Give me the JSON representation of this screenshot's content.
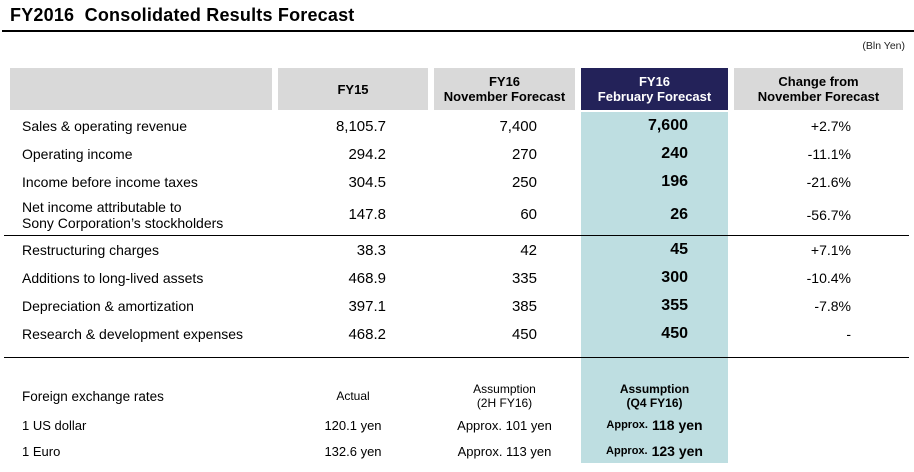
{
  "page": {
    "title": "FY2016  Consolidated Results Forecast",
    "unit_note": "(Bln Yen)"
  },
  "colors": {
    "header_bg": "#d9d9d9",
    "highlight_header_bg": "#232259",
    "highlight_column_bg": "#bedee1"
  },
  "table": {
    "columns": {
      "label": "",
      "fy15": "FY15",
      "nov": "FY16\nNovember Forecast",
      "feb": "FY16\nFebruary Forecast",
      "change": "Change from\nNovember Forecast"
    },
    "section1": [
      {
        "label": "Sales & operating revenue",
        "fy15": "8,105.7",
        "nov": "7,400",
        "feb": "7,600",
        "change": "+2.7%"
      },
      {
        "label": "Operating income",
        "fy15": "294.2",
        "nov": "270",
        "feb": "240",
        "change": "-11.1%"
      },
      {
        "label": "Income before income taxes",
        "fy15": "304.5",
        "nov": "250",
        "feb": "196",
        "change": "-21.6%"
      },
      {
        "label": "Net income attributable to\nSony Corporation’s stockholders",
        "fy15": "147.8",
        "nov": "60",
        "feb": "26",
        "change": "-56.7%"
      }
    ],
    "section2": [
      {
        "label": "Restructuring charges",
        "fy15": "38.3",
        "nov": "42",
        "feb": "45",
        "change": "+7.1%"
      },
      {
        "label": "Additions to long-lived assets",
        "fy15": "468.9",
        "nov": "335",
        "feb": "300",
        "change": "-10.4%"
      },
      {
        "label": "Depreciation & amortization",
        "fy15": "397.1",
        "nov": "385",
        "feb": "355",
        "change": "-7.8%"
      },
      {
        "label": "Research & development expenses",
        "fy15": "468.2",
        "nov": "450",
        "feb": "450",
        "change": "-"
      }
    ],
    "fx": {
      "header": {
        "label": "Foreign exchange rates",
        "fy15": "Actual",
        "nov": "Assumption\n(2H FY16)",
        "feb": "Assumption\n(Q4 FY16)"
      },
      "rows": [
        {
          "label": "1 US dollar",
          "fy15": "120.1 yen",
          "nov": "Approx. 101 yen",
          "feb_prefix": "Approx.",
          "feb_value": "118 yen"
        },
        {
          "label": "1 Euro",
          "fy15": "132.6 yen",
          "nov": "Approx. 113 yen",
          "feb_prefix": "Approx.",
          "feb_value": "123 yen"
        }
      ]
    }
  }
}
